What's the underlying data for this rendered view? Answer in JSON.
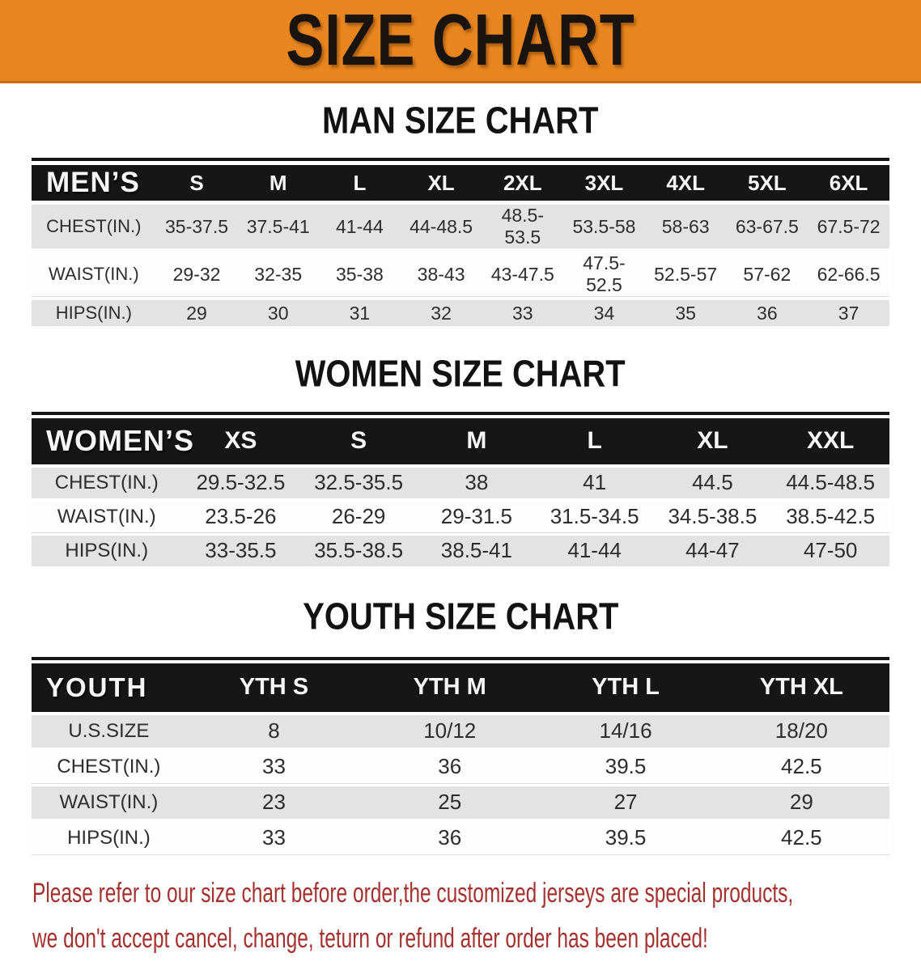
{
  "banner": {
    "title": "SIZE CHART",
    "bg_color": "#E8851F",
    "text_color": "#191410"
  },
  "colors": {
    "table_header_bg": "#161616",
    "row_gray": "#E3E3E3",
    "footer_red": "#A5312E"
  },
  "sections": [
    {
      "heading": "MAN SIZE CHART",
      "table": {
        "corner": "MEN’S",
        "columns": [
          "S",
          "M",
          "L",
          "XL",
          "2XL",
          "3XL",
          "4XL",
          "5XL",
          "6XL"
        ],
        "rows": [
          {
            "label": "CHEST(IN.)",
            "values": [
              "35-37.5",
              "37.5-41",
              "41-44",
              "44-48.5",
              "48.5-53.5",
              "53.5-58",
              "58-63",
              "63-67.5",
              "67.5-72"
            ]
          },
          {
            "label": "WAIST(IN.)",
            "values": [
              "29-32",
              "32-35",
              "35-38",
              "38-43",
              "43-47.5",
              "47.5-52.5",
              "52.5-57",
              "57-62",
              "62-66.5"
            ]
          },
          {
            "label": "HIPS(IN.)",
            "values": [
              "29",
              "30",
              "31",
              "32",
              "33",
              "34",
              "35",
              "36",
              "37"
            ]
          }
        ]
      }
    },
    {
      "heading": "WOMEN SIZE CHART",
      "table": {
        "corner": "WOMEN’S",
        "columns": [
          "XS",
          "S",
          "M",
          "L",
          "XL",
          "XXL"
        ],
        "rows": [
          {
            "label": "CHEST(IN.)",
            "values": [
              "29.5-32.5",
              "32.5-35.5",
              "38",
              "41",
              "44.5",
              "44.5-48.5"
            ]
          },
          {
            "label": "WAIST(IN.)",
            "values": [
              "23.5-26",
              "26-29",
              "29-31.5",
              "31.5-34.5",
              "34.5-38.5",
              "38.5-42.5"
            ]
          },
          {
            "label": "HIPS(IN.)",
            "values": [
              "33-35.5",
              "35.5-38.5",
              "38.5-41",
              "41-44",
              "44-47",
              "47-50"
            ]
          }
        ]
      }
    },
    {
      "heading": "YOUTH SIZE CHART",
      "table": {
        "corner": "YOUTH",
        "columns": [
          "YTH S",
          "YTH M",
          "YTH L",
          "YTH XL"
        ],
        "rows": [
          {
            "label": "U.S.SIZE",
            "values": [
              "8",
              "10/12",
              "14/16",
              "18/20"
            ]
          },
          {
            "label": "CHEST(IN.)",
            "values": [
              "33",
              "36",
              "39.5",
              "42.5"
            ]
          },
          {
            "label": "WAIST(IN.)",
            "values": [
              "23",
              "25",
              "27",
              "29"
            ]
          },
          {
            "label": "HIPS(IN.)",
            "values": [
              "33",
              "36",
              "39.5",
              "42.5"
            ]
          }
        ]
      }
    }
  ],
  "footer": {
    "line1": "Please refer to our size chart before order,the customized jerseys are special products,",
    "line2": "we don't accept cancel, change, teturn or refund after order has been placed!"
  }
}
